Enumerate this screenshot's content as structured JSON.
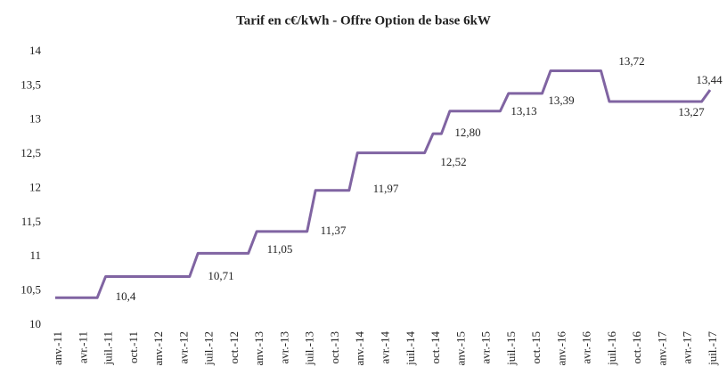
{
  "chart_data": {
    "type": "line",
    "title": "Tarif en c€/kWh - Offre Option de base 6kW",
    "categories": [
      "anv.-11",
      null,
      null,
      "avr.-11",
      null,
      null,
      "juil.-11",
      null,
      null,
      "oct.-11",
      null,
      null,
      "anv.-12",
      null,
      null,
      "avr.-12",
      null,
      null,
      "juil.-12",
      null,
      null,
      "oct.-12",
      null,
      null,
      "anv.-13",
      null,
      null,
      "avr.-13",
      null,
      null,
      "juil.-13",
      null,
      null,
      "oct.-13",
      null,
      null,
      "anv.-14",
      null,
      null,
      "avr.-14",
      null,
      null,
      "juil.-14",
      null,
      null,
      "oct.-14",
      null,
      null,
      "anv.-15",
      null,
      null,
      "avr.-15",
      null,
      null,
      "juil.-15",
      null,
      null,
      "oct.-15",
      null,
      null,
      "anv.-16",
      null,
      null,
      "avr.-16",
      null,
      null,
      "juil.-16",
      null,
      null,
      "oct.-16",
      null,
      null,
      "anv.-17",
      null,
      null,
      "avr.-17",
      null,
      null,
      "juil.-17"
    ],
    "series": [
      {
        "color": "#8064a2",
        "values": [
          10.4,
          10.4,
          10.4,
          10.4,
          10.4,
          10.4,
          10.71,
          10.71,
          10.71,
          10.71,
          10.71,
          10.71,
          10.71,
          10.71,
          10.71,
          10.71,
          10.71,
          11.05,
          11.05,
          11.05,
          11.05,
          11.05,
          11.05,
          11.05,
          11.37,
          11.37,
          11.37,
          11.37,
          11.37,
          11.37,
          11.37,
          11.97,
          11.97,
          11.97,
          11.97,
          11.97,
          12.52,
          12.52,
          12.52,
          12.52,
          12.52,
          12.52,
          12.52,
          12.52,
          12.52,
          12.8,
          12.8,
          13.13,
          13.13,
          13.13,
          13.13,
          13.13,
          13.13,
          13.13,
          13.39,
          13.39,
          13.39,
          13.39,
          13.39,
          13.72,
          13.72,
          13.72,
          13.72,
          13.72,
          13.72,
          13.72,
          13.27,
          13.27,
          13.27,
          13.27,
          13.27,
          13.27,
          13.27,
          13.27,
          13.27,
          13.27,
          13.27,
          13.27,
          13.44
        ],
        "value_labels": [
          null,
          null,
          null,
          null,
          null,
          "10,4",
          null,
          null,
          null,
          null,
          null,
          null,
          null,
          null,
          null,
          null,
          "10,71",
          null,
          null,
          null,
          null,
          null,
          null,
          "11,05",
          null,
          null,
          null,
          null,
          null,
          null,
          "11,37",
          null,
          null,
          null,
          null,
          "11,97",
          null,
          null,
          null,
          null,
          null,
          null,
          null,
          null,
          "12,52",
          null,
          "12,80",
          null,
          null,
          null,
          null,
          null,
          null,
          "13,13",
          null,
          null,
          null,
          null,
          "13,39",
          null,
          null,
          null,
          null,
          null,
          null,
          "13,72",
          null,
          null,
          null,
          null,
          null,
          null,
          null,
          null,
          null,
          null,
          null,
          "13,27",
          "13,44"
        ]
      }
    ],
    "ylim": [
      10,
      14
    ],
    "yticks": [
      10,
      {
        "value": 10.5,
        "label": "10,5"
      },
      11,
      {
        "value": 11.5,
        "label": "11,5"
      },
      12,
      {
        "value": 12.5,
        "label": "12,5"
      },
      13,
      {
        "value": 13.5,
        "label": "13,5"
      },
      14
    ],
    "grid": false
  }
}
